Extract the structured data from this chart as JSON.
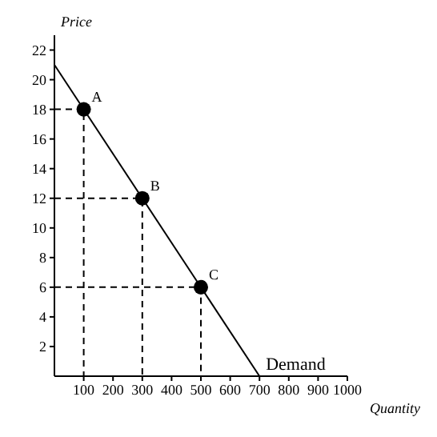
{
  "chart_data": {
    "type": "line",
    "xlabel": "Quantity",
    "ylabel": "Price",
    "xlim": [
      0,
      1000
    ],
    "ylim": [
      0,
      23
    ],
    "xticks": [
      100,
      200,
      300,
      400,
      500,
      600,
      700,
      800,
      900,
      1000
    ],
    "yticks": [
      2,
      4,
      6,
      8,
      10,
      12,
      14,
      16,
      18,
      20,
      22
    ],
    "grid": false,
    "series": [
      {
        "name": "Demand",
        "color": "#000000",
        "x": [
          0,
          700
        ],
        "values": [
          21,
          0
        ],
        "marker": "none",
        "line_style": "solid"
      },
      {
        "color": "#000000",
        "x": [
          0,
          100,
          100
        ],
        "values": [
          18,
          18,
          0
        ],
        "marker": "none",
        "line_style": "dashed"
      },
      {
        "color": "#000000",
        "x": [
          0,
          300,
          300
        ],
        "values": [
          12,
          12,
          0
        ],
        "marker": "none",
        "line_style": "dashed"
      },
      {
        "color": "#000000",
        "x": [
          0,
          500,
          500
        ],
        "values": [
          6,
          6,
          0
        ],
        "marker": "none",
        "line_style": "dashed"
      },
      {
        "type": "scatter",
        "color": "#000000",
        "x": [
          100,
          300,
          500
        ],
        "values": [
          18,
          12,
          6
        ],
        "marker": "circle"
      }
    ],
    "annotations": [
      {
        "text": "A",
        "x": 100,
        "y": 18
      },
      {
        "text": "B",
        "x": 300,
        "y": 12
      },
      {
        "text": "C",
        "x": 500,
        "y": 6
      }
    ]
  }
}
